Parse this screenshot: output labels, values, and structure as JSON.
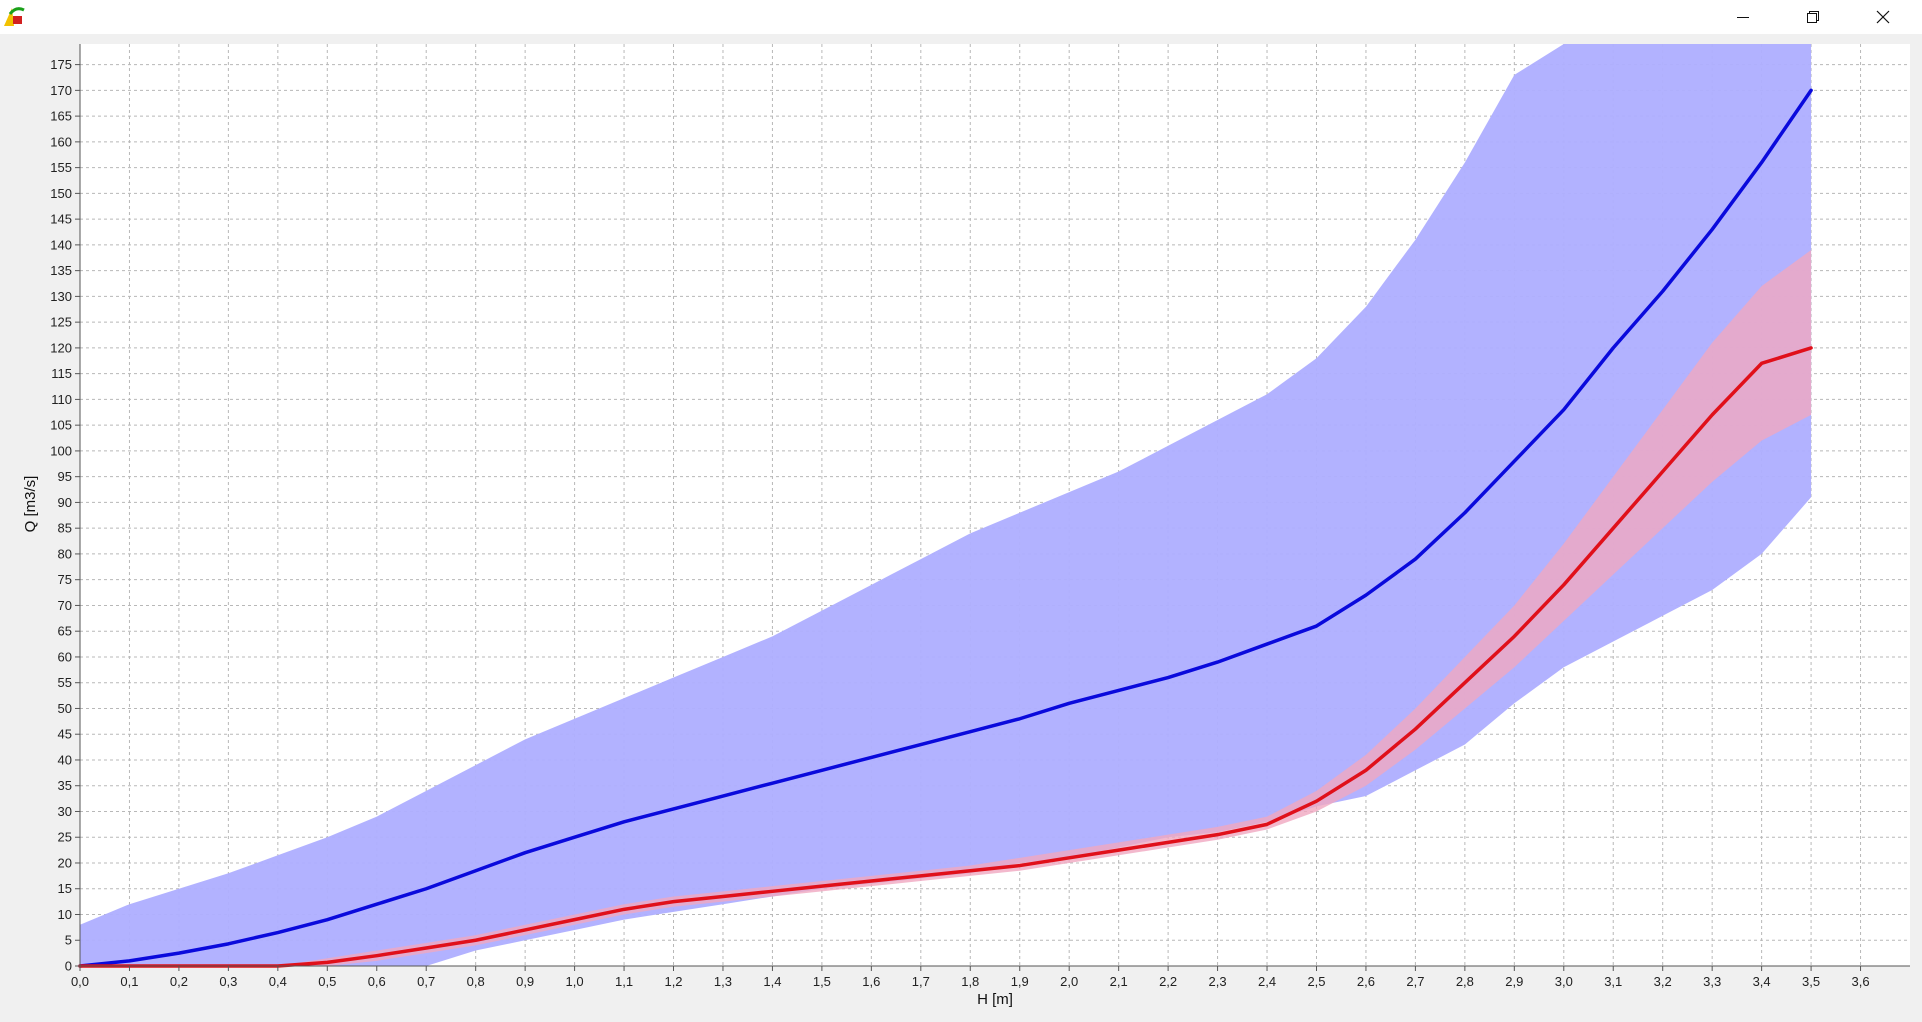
{
  "window": {
    "icons": {
      "app": "app-logo-icon",
      "minimize": "minimize-icon",
      "maximize": "restore-icon",
      "close": "close-icon"
    }
  },
  "chart_data": {
    "type": "line",
    "xlabel": "H [m]",
    "ylabel": "Q [m3/s]",
    "xlim": [
      0,
      3.7
    ],
    "ylim": [
      0,
      179
    ],
    "x_ticks": [
      "0,0",
      "0,1",
      "0,2",
      "0,3",
      "0,4",
      "0,5",
      "0,6",
      "0,7",
      "0,8",
      "0,9",
      "1,0",
      "1,1",
      "1,2",
      "1,3",
      "1,4",
      "1,5",
      "1,6",
      "1,7",
      "1,8",
      "1,9",
      "2,0",
      "2,1",
      "2,2",
      "2,3",
      "2,4",
      "2,5",
      "2,6",
      "2,7",
      "2,8",
      "2,9",
      "3,0",
      "3,1",
      "3,2",
      "3,3",
      "3,4",
      "3,5",
      "3,6"
    ],
    "y_ticks": [
      "0",
      "5",
      "10",
      "15",
      "20",
      "25",
      "30",
      "35",
      "40",
      "45",
      "50",
      "55",
      "60",
      "65",
      "70",
      "75",
      "80",
      "85",
      "90",
      "95",
      "100",
      "105",
      "110",
      "115",
      "120",
      "125",
      "130",
      "135",
      "140",
      "145",
      "150",
      "155",
      "160",
      "165",
      "170",
      "175"
    ],
    "grid": true,
    "colors": {
      "blue_line": "#0a0adc",
      "blue_band": "#aeaeff",
      "red_line": "#e0101a",
      "red_band": "#f0a8c0"
    },
    "series": [
      {
        "color": "blue",
        "x": [
          0.0,
          0.1,
          0.2,
          0.3,
          0.4,
          0.5,
          0.6,
          0.7,
          0.8,
          0.9,
          1.0,
          1.1,
          1.2,
          1.3,
          1.4,
          1.5,
          1.6,
          1.7,
          1.8,
          1.9,
          2.0,
          2.1,
          2.2,
          2.3,
          2.4,
          2.5,
          2.6,
          2.7,
          2.8,
          2.9,
          3.0,
          3.1,
          3.2,
          3.3,
          3.4,
          3.5
        ],
        "y": [
          0,
          1,
          2.5,
          4.3,
          6.5,
          9,
          12,
          15,
          18.5,
          22,
          25,
          28,
          30.5,
          33,
          35.5,
          38,
          40.5,
          43,
          45.5,
          48,
          51,
          53.5,
          56,
          59,
          62.5,
          66,
          72,
          79,
          88,
          98,
          108,
          120,
          131,
          143,
          156,
          170
        ],
        "band_upper": [
          8,
          12,
          15,
          18,
          21.5,
          25,
          29,
          34,
          39,
          44,
          48,
          52,
          56,
          60,
          64,
          69,
          74,
          79,
          84,
          88,
          92,
          96,
          101,
          106,
          111,
          118,
          128,
          141,
          156,
          173,
          185,
          185,
          185,
          185,
          185,
          185
        ],
        "band_lower": [
          0,
          0,
          0,
          0,
          0,
          0,
          0,
          0,
          3,
          5,
          7,
          9,
          10.5,
          12,
          13.5,
          15,
          16,
          17,
          18,
          20,
          21,
          23,
          25,
          26,
          28,
          31,
          33,
          38,
          43,
          51,
          58,
          63,
          68,
          73,
          80,
          91
        ]
      },
      {
        "color": "red",
        "x": [
          0.0,
          0.1,
          0.2,
          0.3,
          0.4,
          0.5,
          0.6,
          0.7,
          0.8,
          0.9,
          1.0,
          1.1,
          1.2,
          1.3,
          1.4,
          1.5,
          1.6,
          1.7,
          1.8,
          1.9,
          2.0,
          2.1,
          2.2,
          2.3,
          2.4,
          2.5,
          2.6,
          2.7,
          2.8,
          2.9,
          3.0,
          3.1,
          3.2,
          3.3,
          3.4,
          3.5
        ],
        "y": [
          0,
          0,
          0,
          0,
          0,
          0.7,
          2,
          3.5,
          5,
          7,
          9,
          11,
          12.5,
          13.5,
          14.5,
          15.5,
          16.5,
          17.5,
          18.5,
          19.5,
          21,
          22.5,
          24,
          25.5,
          27.5,
          32,
          38,
          46,
          55,
          64,
          74,
          85,
          96,
          107,
          117,
          120
        ],
        "band_upper": [
          0,
          0,
          0,
          0,
          0,
          1.5,
          3,
          4.5,
          6,
          8,
          10,
          12,
          13.5,
          14.5,
          15.5,
          16.5,
          17.5,
          18.5,
          19.5,
          21,
          22.5,
          24,
          25.5,
          27,
          29,
          34,
          41,
          50,
          60,
          70,
          82,
          95,
          108,
          121,
          132,
          139
        ],
        "band_lower": [
          0,
          0,
          0,
          0,
          0,
          0,
          1,
          2.5,
          4,
          6,
          8,
          10,
          11.5,
          12.5,
          13.5,
          14.5,
          15.5,
          16.5,
          17.5,
          18.5,
          20,
          21.5,
          23,
          24.5,
          26.5,
          30,
          35,
          42,
          50,
          58,
          67,
          76,
          85,
          94,
          102,
          107
        ]
      }
    ]
  }
}
